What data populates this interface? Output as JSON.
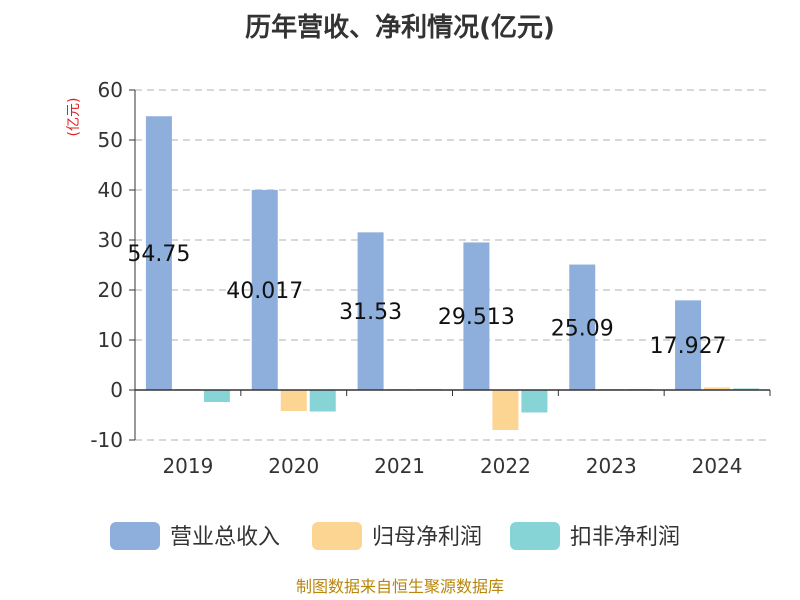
{
  "chart_data": {
    "type": "bar",
    "title": "历年营收、净利情况(亿元)",
    "ylabel": "(亿元)",
    "ylim": [
      -10,
      60
    ],
    "yticks": [
      60,
      50,
      40,
      30,
      20,
      10,
      0,
      -10
    ],
    "categories": [
      "2019",
      "2020",
      "2021",
      "2022",
      "2023",
      "2024"
    ],
    "grid": true,
    "legend_position": "bottom",
    "series": [
      {
        "name": "营业总收入",
        "color": "#8eaedb",
        "values": [
          54.75,
          40.017,
          31.53,
          29.513,
          25.09,
          17.927
        ],
        "labels": [
          "54.75",
          "40.017",
          "31.53",
          "29.513",
          "25.09",
          "17.927"
        ]
      },
      {
        "name": "归母净利润",
        "color": "#fdd593",
        "values": [
          0.2,
          -4.2,
          0.2,
          -8.0,
          0.2,
          0.5
        ]
      },
      {
        "name": "扣非净利润",
        "color": "#86d4d6",
        "values": [
          -2.4,
          -4.3,
          0.2,
          -4.5,
          0.2,
          0.3
        ]
      }
    ]
  },
  "source": "制图数据来自恒生聚源数据库"
}
